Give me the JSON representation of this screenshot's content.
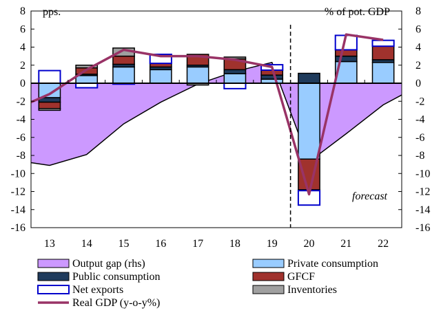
{
  "chart_data": {
    "type": "bar",
    "title": "",
    "left_axis_label": "pps.",
    "right_axis_label": "% of pot. GDP",
    "annotation": "forecast",
    "categories": [
      "13",
      "14",
      "15",
      "16",
      "17",
      "18",
      "19",
      "20",
      "21",
      "22"
    ],
    "ylim": [
      -16,
      8
    ],
    "yticks": [
      8,
      6,
      4,
      2,
      0,
      -2,
      -4,
      -6,
      -8,
      -10,
      -12,
      -14,
      -16
    ],
    "forecast_starts_after": "19",
    "series": [
      {
        "name": "Private consumption",
        "type": "stacked-bar",
        "color": "#99ccff",
        "values": [
          -1.6,
          0.85,
          1.8,
          1.5,
          1.8,
          1.05,
          0.45,
          -8.4,
          2.4,
          2.3
        ]
      },
      {
        "name": "Public consumption",
        "type": "stacked-bar",
        "color": "#1f3b5c",
        "values": [
          -0.5,
          0.15,
          0.3,
          0.3,
          0.2,
          0.45,
          0.45,
          1.1,
          0.6,
          0.3
        ]
      },
      {
        "name": "GFCF",
        "type": "stacked-bar",
        "color": "#a0322d",
        "values": [
          -0.7,
          0.7,
          0.9,
          0.4,
          1.2,
          1.2,
          0.55,
          -3.4,
          0.7,
          1.5
        ]
      },
      {
        "name": "Inventories",
        "type": "stacked-bar",
        "color": "#a0a0a0",
        "values": [
          -0.2,
          0.3,
          0.9,
          0,
          -0.2,
          0.2,
          0,
          -0.1,
          0,
          0
        ]
      },
      {
        "name": "Net exports",
        "type": "stacked-bar",
        "color": "#0000cc",
        "values": [
          1.4,
          -0.5,
          -0.1,
          1.0,
          0,
          -0.6,
          0.6,
          -1.6,
          1.6,
          0.65
        ]
      },
      {
        "name": "Output gap (rhs)",
        "type": "area",
        "color": "#cc99ff",
        "values": [
          -9.1,
          -7.9,
          -4.5,
          -2.1,
          -0.1,
          1.3,
          2.3,
          -8.7,
          -5.6,
          -2.4
        ],
        "edge_values": [
          -8.8,
          -1.3
        ]
      },
      {
        "name": "Real GDP (y-o-y%)",
        "type": "line",
        "color": "#993366",
        "values": [
          -1.2,
          1.5,
          3.7,
          3.0,
          3.0,
          2.6,
          1.8,
          -12.3,
          5.4,
          4.8
        ],
        "edge_values": [
          -2.1,
          null
        ]
      }
    ],
    "legend": [
      "Output gap (rhs)",
      "Private consumption",
      "Public consumption",
      "GFCF",
      "Net exports",
      "Inventories",
      "Real GDP (y-o-y%)"
    ]
  }
}
